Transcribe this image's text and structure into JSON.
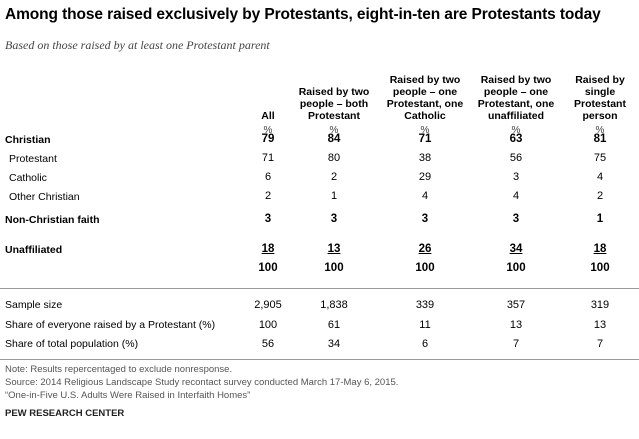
{
  "title": "Among those raised exclusively by Protestants, eight-in-ten are Protestants today",
  "subtitle": "Based on those raised by at least one Protestant parent",
  "columns": [
    "All",
    "Raised by two people – both Protestant",
    "Raised by two people – one Protestant, one Catholic",
    "Raised by two people – one Protestant, one unaffiliated",
    "Raised by single Protestant person"
  ],
  "percent_sign": "%",
  "rows": [
    {
      "label": "Christian",
      "values": [
        "79",
        "84",
        "71",
        "63",
        "81"
      ]
    },
    {
      "label": "Protestant",
      "values": [
        "71",
        "80",
        "38",
        "56",
        "75"
      ]
    },
    {
      "label": "Catholic",
      "values": [
        "6",
        "2",
        "29",
        "3",
        "4"
      ]
    },
    {
      "label": "Other Christian",
      "values": [
        "2",
        "1",
        "4",
        "4",
        "2"
      ]
    },
    {
      "label": "Non-Christian faith",
      "values": [
        "3",
        "3",
        "3",
        "3",
        "1"
      ]
    },
    {
      "label": "Unaffiliated",
      "values": [
        "18",
        "13",
        "26",
        "34",
        "18"
      ]
    },
    {
      "label": "",
      "values": [
        "100",
        "100",
        "100",
        "100",
        "100"
      ]
    }
  ],
  "stats": [
    {
      "label": "Sample size",
      "values": [
        "2,905",
        "1,838",
        "339",
        "357",
        "319"
      ]
    },
    {
      "label": "Share of everyone raised by a Protestant (%)",
      "values": [
        "100",
        "61",
        "11",
        "13",
        "13"
      ]
    },
    {
      "label": "Share of total population (%)",
      "values": [
        "56",
        "34",
        "6",
        "7",
        "7"
      ]
    }
  ],
  "notes": [
    "Note: Results repercentaged to exclude nonresponse.",
    "Source: 2014 Religious Landscape Study recontact survey conducted March 17-May 6, 2015.",
    "“One-in-Five U.S. Adults Were Raised in Interfaith Homes”"
  ],
  "source_label": "PEW RESEARCH CENTER"
}
